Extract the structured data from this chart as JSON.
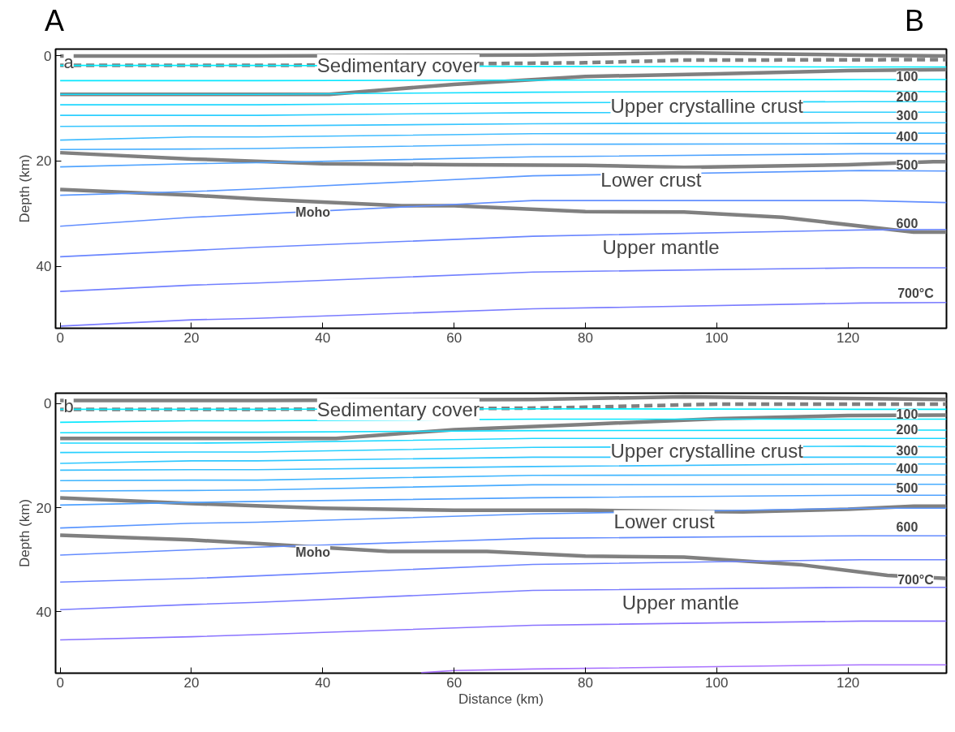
{
  "chart_data": [
    {
      "type": "line",
      "title": "a",
      "ylabel": "Depth (km)",
      "xlim": [
        -0.7,
        135
      ],
      "ylim": [
        51.8,
        -1.3
      ],
      "xticks": [
        0,
        20,
        40,
        60,
        80,
        100,
        120
      ],
      "yticks": [
        0,
        20,
        40
      ],
      "grid": false,
      "x": [
        0,
        20,
        30,
        72,
        122,
        135
      ],
      "series": [
        {
          "color": "#808080",
          "x": [
            0,
            30,
            72,
            95,
            120,
            135
          ],
          "values": [
            0,
            0,
            -0.2,
            -0.6,
            -0.2,
            0
          ]
        },
        {
          "color": "#808080",
          "line_style": "dashed",
          "x": [
            0,
            33,
            70,
            80,
            95,
            135
          ],
          "values": [
            1.8,
            1.8,
            1.4,
            1.3,
            0.8,
            0.7
          ]
        },
        {
          "color": "#808080",
          "x": [
            0,
            41,
            60,
            80,
            100,
            120,
            135
          ],
          "values": [
            7.3,
            7.3,
            5.4,
            3.9,
            3.4,
            2.8,
            2.6
          ]
        },
        {
          "color": "#808080",
          "x": [
            0,
            20,
            40,
            60,
            80,
            95,
            120,
            133,
            135
          ],
          "values": [
            18.4,
            19.6,
            20.5,
            20.7,
            20.8,
            21.2,
            20.7,
            20.1,
            20.1
          ]
        },
        {
          "color": "#808080",
          "x": [
            0,
            20,
            30,
            52,
            60,
            80,
            95,
            110,
            130,
            135
          ],
          "values": [
            25.4,
            26.5,
            27.2,
            28.5,
            28.5,
            29.6,
            29.7,
            30.7,
            33.5,
            33.5
          ]
        },
        {
          "color": "#00f0ff",
          "values": [
            1.8,
            1.8,
            1.8,
            2.0,
            2.1,
            2.1
          ]
        },
        {
          "color": "#08e8ff",
          "values": [
            4.7,
            4.7,
            4.7,
            4.6,
            4.5,
            4.5
          ]
        },
        {
          "color": "#14e0ff",
          "values": [
            7.3,
            7.3,
            7.3,
            6.9,
            6.7,
            6.8
          ]
        },
        {
          "color": "#20d8ff",
          "values": [
            9.3,
            9.3,
            9.3,
            8.9,
            8.7,
            8.7
          ]
        },
        {
          "color": "#2ccfff",
          "values": [
            11.3,
            11.3,
            11.3,
            10.8,
            10.7,
            10.7
          ]
        },
        {
          "color": "#38c6ff",
          "values": [
            13.4,
            13.3,
            13.3,
            12.9,
            12.7,
            12.7
          ]
        },
        {
          "color": "#40bcff",
          "values": [
            16.0,
            15.4,
            15.4,
            14.8,
            14.7,
            14.7
          ]
        },
        {
          "color": "#48b0ff",
          "values": [
            17.8,
            17.7,
            17.6,
            16.8,
            16.7,
            16.7
          ]
        },
        {
          "color": "#50a4ff",
          "values": [
            21.1,
            20.5,
            20.3,
            19.2,
            18.6,
            18.6
          ]
        },
        {
          "color": "#5a98ff",
          "values": [
            26.5,
            25.8,
            25.3,
            22.8,
            21.8,
            21.9
          ]
        },
        {
          "color": "#628eff",
          "values": [
            32.4,
            30.7,
            30.1,
            27.5,
            27.5,
            27.9
          ]
        },
        {
          "color": "#6a86ff",
          "values": [
            38.2,
            37.0,
            36.4,
            34.3,
            33.1,
            33.0
          ]
        },
        {
          "color": "#7280ff",
          "values": [
            44.8,
            43.6,
            43.2,
            41.1,
            40.3,
            40.3
          ]
        },
        {
          "color": "#7a7cff",
          "values": [
            51.4,
            50.2,
            49.9,
            48.1,
            47.0,
            46.9
          ]
        }
      ],
      "annotations": [
        "A",
        "B",
        "Sedimentary cover",
        "Upper crystalline crust",
        "Lower crust",
        "Moho",
        "Upper mantle",
        "100",
        "200",
        "300",
        "400",
        "500",
        "600",
        "700°C"
      ]
    },
    {
      "type": "line",
      "title": "b",
      "xlabel": "Distance (km)",
      "ylabel": "Depth (km)",
      "xlim": [
        -0.7,
        135
      ],
      "ylim": [
        51.8,
        -2.0
      ],
      "xticks": [
        0,
        20,
        40,
        60,
        80,
        100,
        120
      ],
      "yticks": [
        0,
        20,
        40
      ],
      "grid": false,
      "x": [
        0,
        20,
        30,
        72,
        122,
        135
      ],
      "series": [
        {
          "color": "#808080",
          "x": [
            0,
            30,
            72,
            95,
            120,
            135
          ],
          "values": [
            -0.6,
            -0.6,
            -0.8,
            -1.3,
            -1.0,
            -0.8
          ]
        },
        {
          "color": "#808080",
          "line_style": "dashed",
          "x": [
            0,
            33,
            70,
            80,
            100,
            135
          ],
          "values": [
            1.1,
            1.1,
            0.9,
            0.7,
            0.1,
            0.1
          ]
        },
        {
          "color": "#808080",
          "x": [
            0,
            42,
            60,
            80,
            100,
            120,
            135
          ],
          "values": [
            6.7,
            6.7,
            5.0,
            4.0,
            2.9,
            2.3,
            2.2
          ]
        },
        {
          "color": "#808080",
          "x": [
            0,
            20,
            40,
            60,
            80,
            104,
            120,
            130,
            135
          ],
          "values": [
            18.1,
            19.2,
            20.1,
            20.5,
            20.5,
            20.8,
            20.3,
            19.7,
            19.7
          ]
        },
        {
          "color": "#808080",
          "x": [
            0,
            20,
            30,
            50,
            65,
            80,
            95,
            113,
            126,
            135
          ],
          "values": [
            25.3,
            26.2,
            26.9,
            28.4,
            28.4,
            29.3,
            29.5,
            31.0,
            33.0,
            33.6
          ]
        },
        {
          "color": "#00f0ff",
          "values": [
            1.1,
            1.1,
            1.1,
            1.0,
            1.1,
            1.1
          ]
        },
        {
          "color": "#08e8ff",
          "values": [
            3.6,
            3.3,
            3.3,
            3.0,
            3.0,
            3.0
          ]
        },
        {
          "color": "#12e0ff",
          "values": [
            5.6,
            5.5,
            5.5,
            5.2,
            5.1,
            5.1
          ]
        },
        {
          "color": "#1cd8ff",
          "values": [
            7.6,
            7.6,
            7.5,
            6.7,
            6.7,
            6.7
          ]
        },
        {
          "color": "#26d0ff",
          "values": [
            9.4,
            9.3,
            9.3,
            8.4,
            8.2,
            8.3
          ]
        },
        {
          "color": "#30c8ff",
          "values": [
            11.5,
            11.0,
            11.0,
            10.3,
            10.3,
            10.3
          ]
        },
        {
          "color": "#38c0ff",
          "values": [
            12.8,
            12.7,
            12.7,
            12.1,
            11.6,
            11.6
          ]
        },
        {
          "color": "#40b6ff",
          "values": [
            14.8,
            14.7,
            14.7,
            13.8,
            13.7,
            13.7
          ]
        },
        {
          "color": "#48acff",
          "values": [
            16.8,
            16.7,
            16.6,
            15.6,
            15.5,
            15.5
          ]
        },
        {
          "color": "#50a2ff",
          "values": [
            19.5,
            19.0,
            18.8,
            18.1,
            17.6,
            17.6
          ]
        },
        {
          "color": "#5a96ff",
          "values": [
            23.9,
            23.0,
            22.8,
            21.2,
            20.1,
            20.1
          ]
        },
        {
          "color": "#648cff",
          "values": [
            29.1,
            28.1,
            27.6,
            25.9,
            25.4,
            25.4
          ]
        },
        {
          "color": "#6e84ff",
          "values": [
            34.3,
            33.6,
            33.1,
            30.9,
            30.0,
            30.0
          ]
        },
        {
          "color": "#7a7cff",
          "values": [
            39.6,
            38.6,
            38.2,
            35.9,
            35.3,
            35.3
          ]
        },
        {
          "color": "#8a74ff",
          "values": [
            45.4,
            44.8,
            44.4,
            42.6,
            41.8,
            41.8
          ]
        },
        {
          "color": "#a872ff",
          "x": [
            55,
            60,
            72,
            122,
            135
          ],
          "values": [
            51.7,
            51.3,
            51.0,
            50.2,
            50.2
          ]
        }
      ],
      "annotations": [
        "Sedimentary cover",
        "Upper crystalline crust",
        "Lower crust",
        "Moho",
        "Upper mantle",
        "100",
        "200",
        "300",
        "400",
        "500",
        "600",
        "700°C"
      ]
    }
  ]
}
